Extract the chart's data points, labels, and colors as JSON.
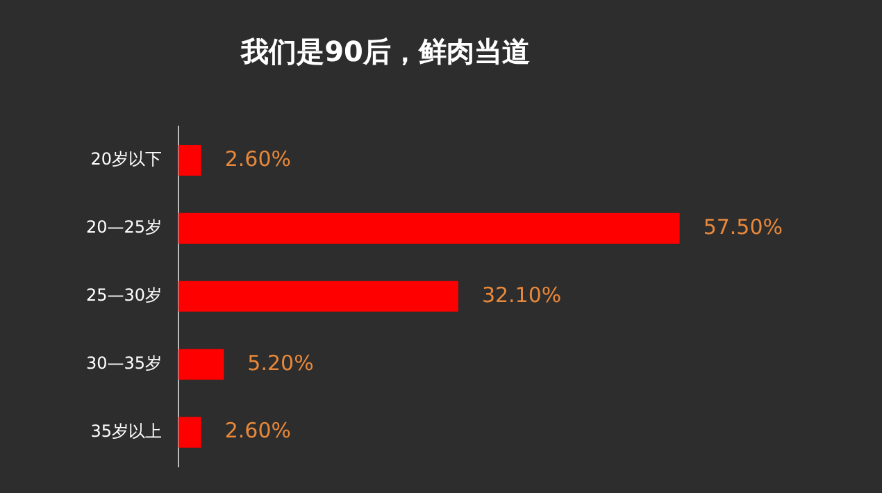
{
  "chart_data": {
    "type": "bar",
    "orientation": "horizontal",
    "title": "我们是90后，鲜肉当道",
    "categories": [
      "20岁以下",
      "20—25岁",
      "25—30岁",
      "30—35岁",
      "35岁以上"
    ],
    "values": [
      2.6,
      57.5,
      32.1,
      5.2,
      2.6
    ],
    "value_labels": [
      "2.60%",
      "57.50%",
      "32.10%",
      "5.20%",
      "2.60%"
    ],
    "color": "#ff0000",
    "tick_labels": "y"
  }
}
